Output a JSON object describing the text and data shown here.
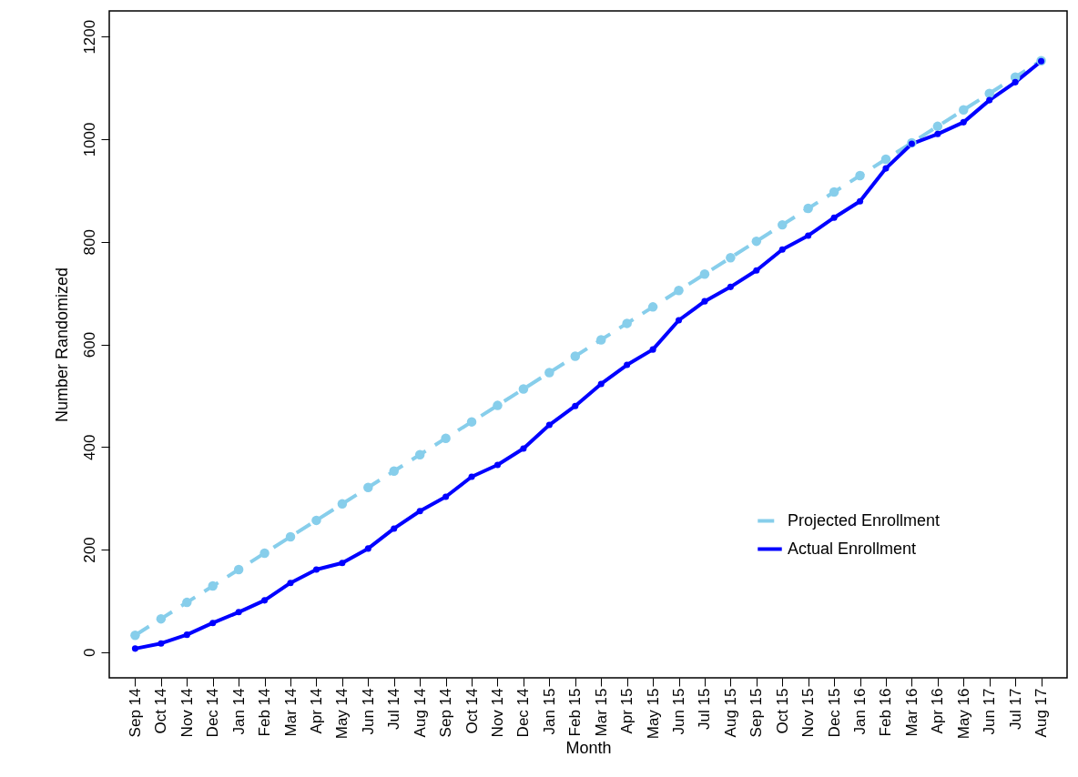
{
  "chart_data": {
    "type": "line",
    "xlabel": "Month",
    "ylabel": "Number Randomized",
    "categories": [
      "Sep 14",
      "Oct 14",
      "Nov 14",
      "Dec 14",
      "Jan 14",
      "Feb 14",
      "Mar 14",
      "Apr 14",
      "May 14",
      "Jun 14",
      "Jul 14",
      "Aug 14",
      "Sep 14",
      "Oct 14",
      "Nov 14",
      "Dec 14",
      "Jan 15",
      "Feb 15",
      "Mar 15",
      "Apr 15",
      "May 15",
      "Jun 15",
      "Jul 15",
      "Aug 15",
      "Sep 15",
      "Oct 15",
      "Nov 15",
      "Dec 15",
      "Jan 16",
      "Feb 16",
      "Mar 16",
      "Apr 16",
      "May 16",
      "Jun 17",
      "Jul 17",
      "Aug 17"
    ],
    "series": [
      {
        "name": "Projected Enrollment",
        "color": "#87ceeb",
        "line_style": "dashed",
        "marker": "circle",
        "values": [
          33,
          65,
          97,
          129,
          161,
          193,
          225,
          257,
          289,
          321,
          353,
          385,
          417,
          449,
          481,
          513,
          545,
          577,
          609,
          641,
          673,
          705,
          737,
          769,
          801,
          833,
          865,
          897,
          929,
          961,
          993,
          1025,
          1057,
          1089,
          1121,
          1153
        ]
      },
      {
        "name": "Actual Enrollment",
        "color": "#0000ff",
        "line_style": "solid",
        "marker": "circle",
        "values": [
          7,
          17,
          34,
          57,
          78,
          101,
          135,
          161,
          174,
          202,
          241,
          275,
          303,
          342,
          365,
          397,
          443,
          480,
          523,
          560,
          590,
          647,
          684,
          712,
          744,
          785,
          812,
          847,
          879,
          943,
          991,
          1010,
          1033,
          1076,
          1111,
          1152
        ]
      }
    ],
    "ylim": [
      -50,
      1250
    ],
    "yticks": [
      0,
      200,
      400,
      600,
      800,
      1000,
      1200
    ],
    "grid": false,
    "legend": "right"
  }
}
